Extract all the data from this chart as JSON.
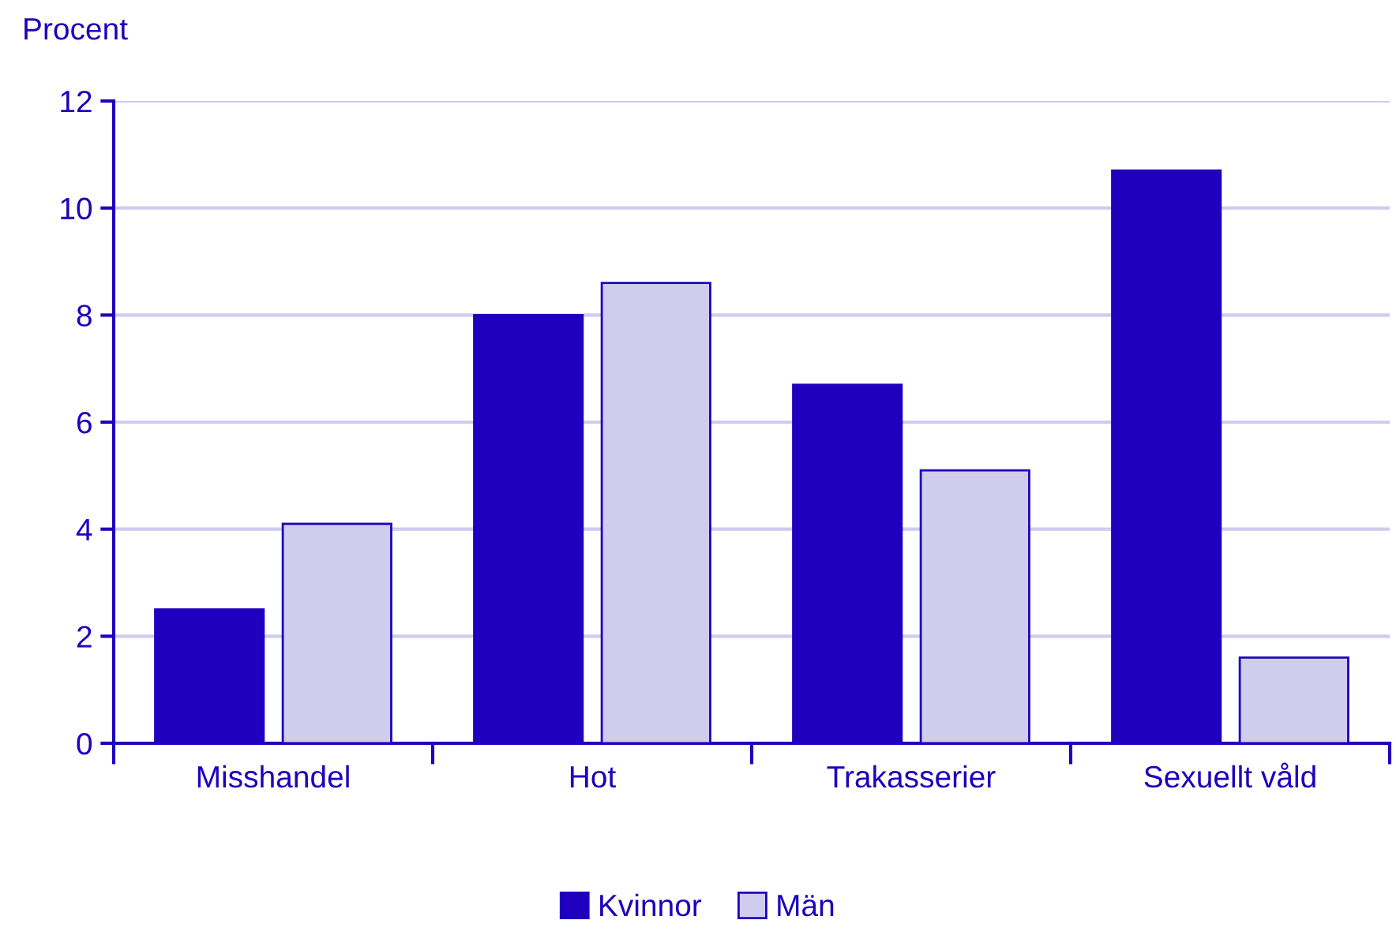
{
  "chart_data": {
    "type": "bar",
    "ylabel": "Procent",
    "categories": [
      "Misshandel",
      "Hot",
      "Trakasserier",
      "Sexuellt våld"
    ],
    "series": [
      {
        "name": "Kvinnor",
        "color": "#1e00be",
        "values": [
          2.5,
          8.0,
          6.7,
          10.7
        ]
      },
      {
        "name": "Män",
        "color": "#d0ccee",
        "values": [
          4.1,
          8.6,
          5.1,
          1.6
        ]
      }
    ],
    "ylim": [
      0,
      12
    ],
    "yticks": [
      0,
      2,
      4,
      6,
      8,
      10,
      12
    ],
    "grid": "y",
    "legend": "bottom"
  }
}
